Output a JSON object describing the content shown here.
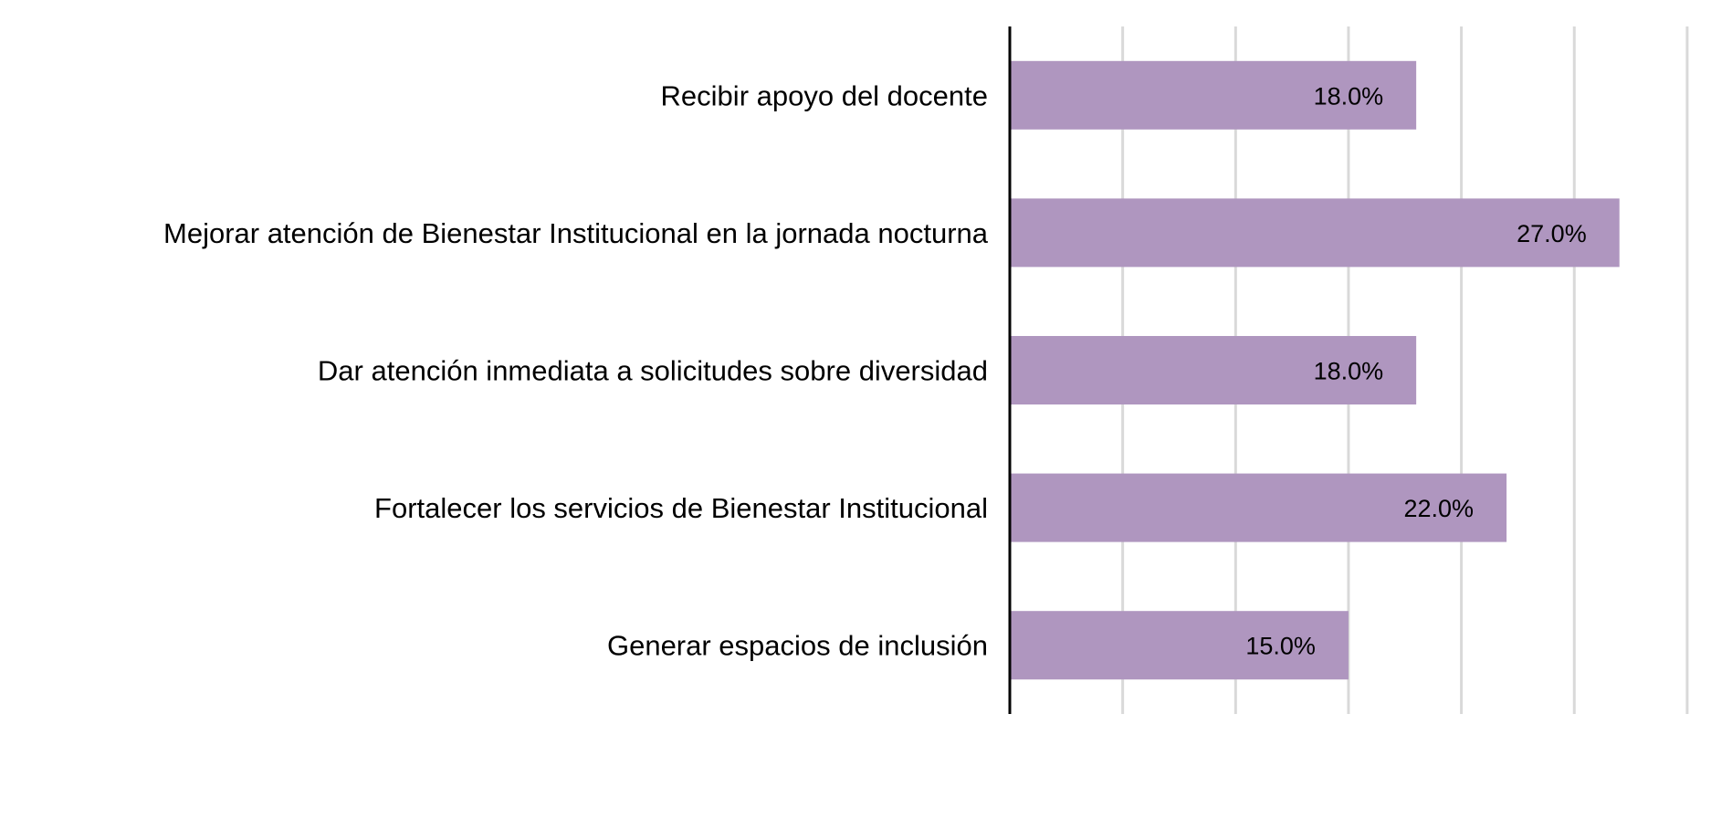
{
  "chart_data": {
    "type": "bar",
    "orientation": "horizontal",
    "title": "",
    "xlabel": "",
    "ylabel": "",
    "categories": [
      "Recibir apoyo del docente",
      "Mejorar atención de Bienestar Institucional en la jornada nocturna",
      "Dar atención inmediata a solicitudes sobre diversidad",
      "Fortalecer los servicios de Bienestar Institucional",
      "Generar espacios de inclusión"
    ],
    "values": [
      18.0,
      27.0,
      18.0,
      22.0,
      15.0
    ],
    "data_labels": [
      "18.0%",
      "27.0%",
      "18.0%",
      "22.0%",
      "15.0%"
    ],
    "xlim": [
      0,
      30
    ],
    "grid_step": 5,
    "grid": true,
    "bar_color": "#af96bf"
  }
}
